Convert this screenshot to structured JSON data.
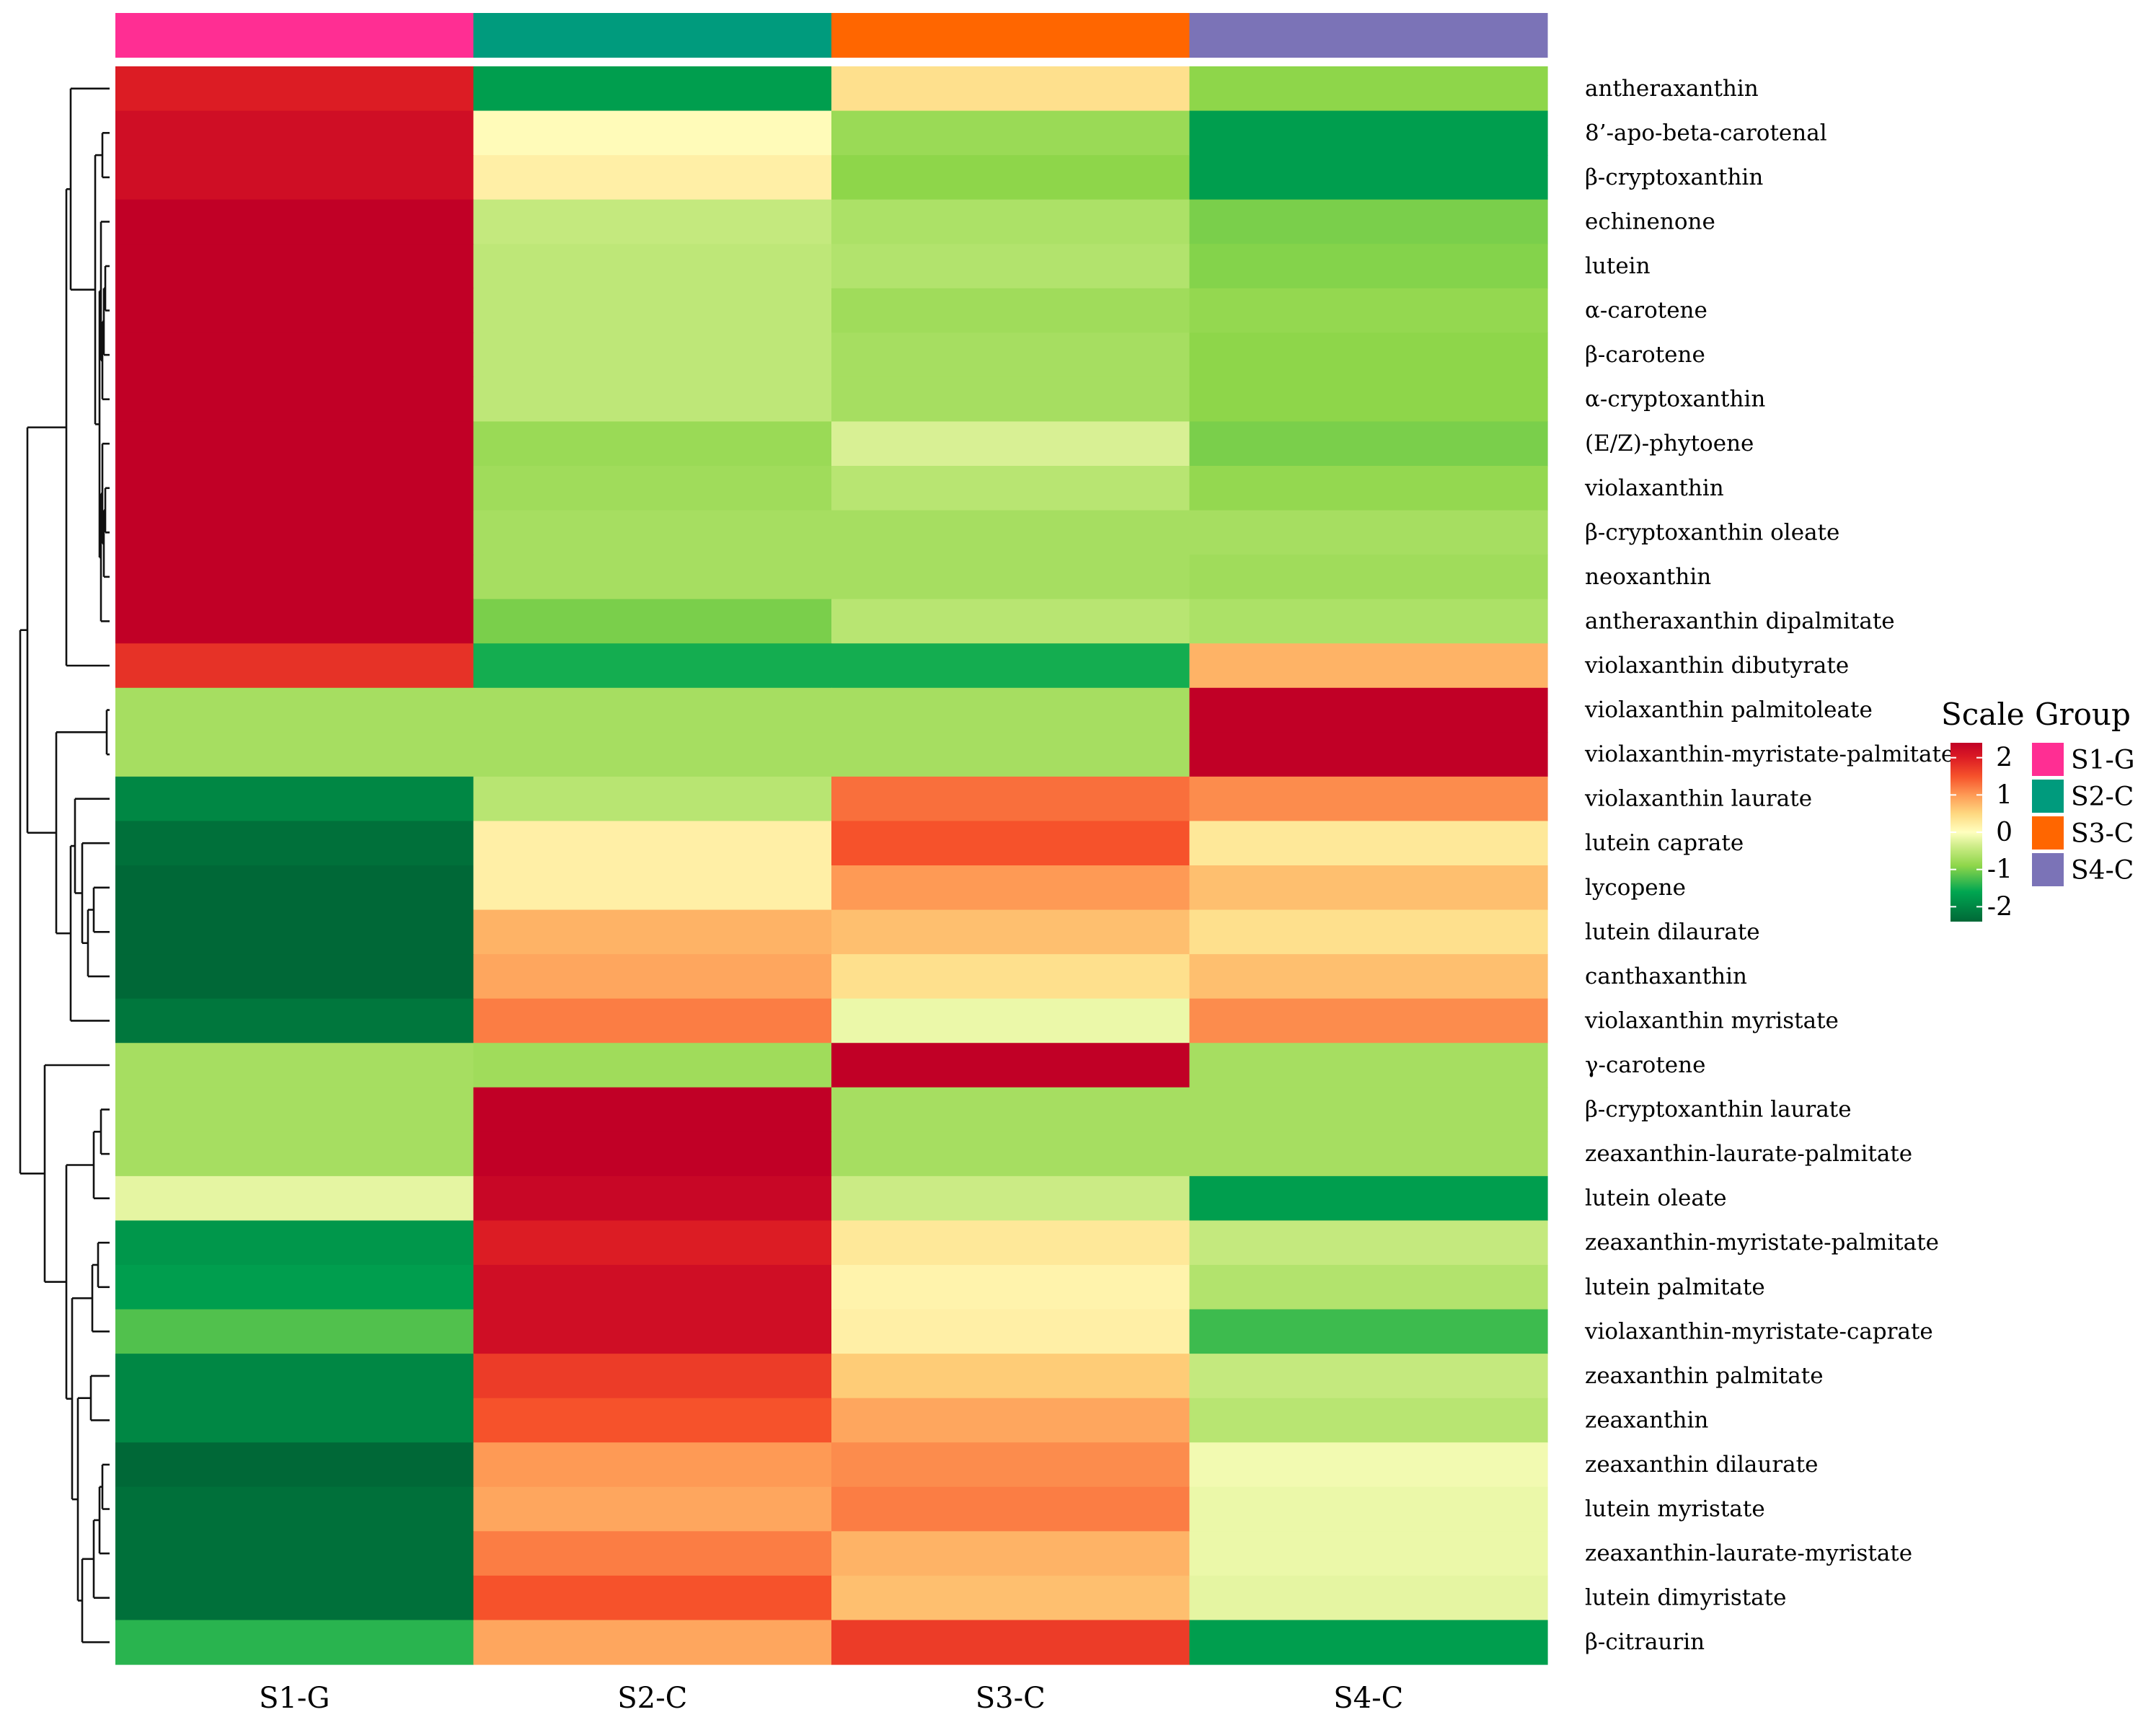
{
  "chart_data": {
    "type": "heatmap",
    "columns": [
      "S1-G",
      "S2-C",
      "S3-C",
      "S4-C"
    ],
    "group_annotation": {
      "title": "Group",
      "groups": [
        {
          "name": "S1-G",
          "color": "#FF2E93"
        },
        {
          "name": "S2-C",
          "color": "#009B7D"
        },
        {
          "name": "S3-C",
          "color": "#FF6600"
        },
        {
          "name": "S4-C",
          "color": "#7B73B7"
        }
      ]
    },
    "scale": {
      "title": "Scale",
      "range": [
        -2.4,
        2.4
      ],
      "ticks": [
        2,
        1,
        0,
        -1,
        -2
      ],
      "tick_labels": [
        "2",
        "1",
        "0",
        "-1",
        "-2"
      ],
      "colors": [
        {
          "v": -2.4,
          "c": "#006837"
        },
        {
          "v": -1.6,
          "c": "#00A651"
        },
        {
          "v": -0.9,
          "c": "#8ED64A"
        },
        {
          "v": -0.45,
          "c": "#C4E97E"
        },
        {
          "v": 0.0,
          "c": "#FFFFBF"
        },
        {
          "v": 0.5,
          "c": "#FED880"
        },
        {
          "v": 1.0,
          "c": "#FE9A55"
        },
        {
          "v": 1.5,
          "c": "#F6522B"
        },
        {
          "v": 2.0,
          "c": "#DC1C24"
        },
        {
          "v": 2.4,
          "c": "#C10026"
        }
      ]
    },
    "rows": [
      {
        "label": "antheraxanthin",
        "values": [
          2.0,
          -1.7,
          0.4,
          -0.9
        ]
      },
      {
        "label": "8’-apo-beta-carotenal",
        "values": [
          2.2,
          0.05,
          -0.8,
          -1.7
        ]
      },
      {
        "label": "β-cryptoxanthin",
        "values": [
          2.2,
          0.2,
          -0.9,
          -1.7
        ]
      },
      {
        "label": "echinenone",
        "values": [
          2.4,
          -0.45,
          -0.65,
          -1.0
        ]
      },
      {
        "label": "lutein",
        "values": [
          2.4,
          -0.5,
          -0.6,
          -0.95
        ]
      },
      {
        "label": "α-carotene",
        "values": [
          2.4,
          -0.5,
          -0.75,
          -0.85
        ]
      },
      {
        "label": "β-carotene",
        "values": [
          2.4,
          -0.5,
          -0.7,
          -0.9
        ]
      },
      {
        "label": "α-cryptoxanthin",
        "values": [
          2.4,
          -0.5,
          -0.7,
          -0.9
        ]
      },
      {
        "label": "(E/Z)-phytoene",
        "values": [
          2.4,
          -0.8,
          -0.3,
          -1.0
        ]
      },
      {
        "label": "violaxanthin",
        "values": [
          2.4,
          -0.75,
          -0.55,
          -0.85
        ]
      },
      {
        "label": "β-cryptoxanthin oleate",
        "values": [
          2.4,
          -0.7,
          -0.7,
          -0.7
        ]
      },
      {
        "label": "neoxanthin",
        "values": [
          2.4,
          -0.7,
          -0.7,
          -0.75
        ]
      },
      {
        "label": "antheraxanthin dipalmitate",
        "values": [
          2.4,
          -1.0,
          -0.55,
          -0.65
        ]
      },
      {
        "label": "violaxanthin dibutyrate",
        "values": [
          1.8,
          -1.5,
          -1.5,
          0.8
        ]
      },
      {
        "label": "violaxanthin palmitoleate",
        "values": [
          -0.7,
          -0.7,
          -0.7,
          2.4
        ]
      },
      {
        "label": "violaxanthin-myristate-palmitate",
        "values": [
          -0.7,
          -0.7,
          -0.7,
          2.4
        ]
      },
      {
        "label": "violaxanthin laurate",
        "values": [
          -2.0,
          -0.55,
          1.3,
          1.1
        ]
      },
      {
        "label": "lutein caprate",
        "values": [
          -2.3,
          0.2,
          1.5,
          0.3
        ]
      },
      {
        "label": "lycopene",
        "values": [
          -2.4,
          0.2,
          1.0,
          0.7
        ]
      },
      {
        "label": "lutein dilaurate",
        "values": [
          -2.4,
          0.8,
          0.7,
          0.4
        ]
      },
      {
        "label": "canthaxanthin",
        "values": [
          -2.4,
          0.9,
          0.4,
          0.7
        ]
      },
      {
        "label": "violaxanthin myristate",
        "values": [
          -2.2,
          1.2,
          -0.15,
          1.1
        ]
      },
      {
        "label": "γ-carotene",
        "values": [
          -0.7,
          -0.75,
          2.4,
          -0.7
        ]
      },
      {
        "label": "β-cryptoxanthin laurate",
        "values": [
          -0.7,
          2.4,
          -0.7,
          -0.7
        ]
      },
      {
        "label": "zeaxanthin-laurate-palmitate",
        "values": [
          -0.7,
          2.4,
          -0.7,
          -0.7
        ]
      },
      {
        "label": "lutein oleate",
        "values": [
          -0.2,
          2.3,
          -0.4,
          -1.7
        ]
      },
      {
        "label": "zeaxanthin-myristate-palmitate",
        "values": [
          -1.8,
          2.0,
          0.3,
          -0.45
        ]
      },
      {
        "label": "lutein palmitate",
        "values": [
          -1.7,
          2.2,
          0.15,
          -0.6
        ]
      },
      {
        "label": "violaxanthin-myristate-caprate",
        "values": [
          -1.2,
          2.2,
          0.2,
          -1.3
        ]
      },
      {
        "label": "zeaxanthin palmitate",
        "values": [
          -2.0,
          1.7,
          0.6,
          -0.45
        ]
      },
      {
        "label": "zeaxanthin",
        "values": [
          -2.0,
          1.5,
          0.9,
          -0.55
        ]
      },
      {
        "label": "zeaxanthin dilaurate",
        "values": [
          -2.4,
          1.0,
          1.1,
          -0.1
        ]
      },
      {
        "label": "lutein myristate",
        "values": [
          -2.3,
          0.9,
          1.2,
          -0.15
        ]
      },
      {
        "label": "zeaxanthin-laurate-myristate",
        "values": [
          -2.3,
          1.2,
          0.8,
          -0.15
        ]
      },
      {
        "label": "lutein dimyristate",
        "values": [
          -2.3,
          1.5,
          0.7,
          -0.2
        ]
      },
      {
        "label": "β-citraurin",
        "values": [
          -1.4,
          0.9,
          1.7,
          -1.7
        ]
      }
    ],
    "row_dendrogram": true
  }
}
